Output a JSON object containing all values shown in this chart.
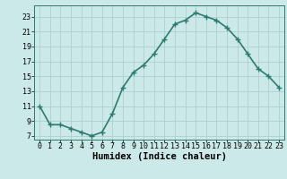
{
  "x": [
    0,
    1,
    2,
    3,
    4,
    5,
    6,
    7,
    8,
    9,
    10,
    11,
    12,
    13,
    14,
    15,
    16,
    17,
    18,
    19,
    20,
    21,
    22,
    23
  ],
  "y": [
    11,
    8.5,
    8.5,
    8.0,
    7.5,
    7.0,
    7.5,
    10.0,
    13.5,
    15.5,
    16.5,
    18.0,
    20.0,
    22.0,
    22.5,
    23.5,
    23.0,
    22.5,
    21.5,
    20.0,
    18.0,
    16.0,
    15.0,
    13.5
  ],
  "line_color": "#2d7a6e",
  "bg_color": "#cce9ea",
  "grid_color": "#aecfd0",
  "xlabel": "Humidex (Indice chaleur)",
  "xlim": [
    -0.5,
    23.5
  ],
  "ylim": [
    6.5,
    24.5
  ],
  "yticks": [
    7,
    9,
    11,
    13,
    15,
    17,
    19,
    21,
    23
  ],
  "xticks": [
    0,
    1,
    2,
    3,
    4,
    5,
    6,
    7,
    8,
    9,
    10,
    11,
    12,
    13,
    14,
    15,
    16,
    17,
    18,
    19,
    20,
    21,
    22,
    23
  ],
  "marker": "+",
  "marker_size": 4,
  "line_width": 1.2,
  "tick_fontsize": 6.0,
  "xlabel_fontsize": 7.5
}
